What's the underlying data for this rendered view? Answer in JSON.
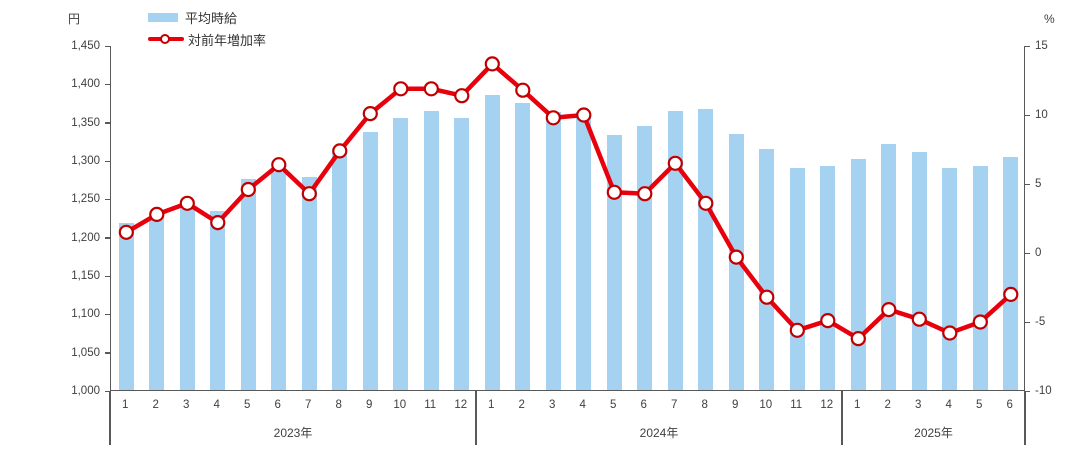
{
  "units": {
    "left": "円",
    "right": "%"
  },
  "legend": {
    "bar_label": "平均時給",
    "line_label": "対前年増加率"
  },
  "colors": {
    "bar": "#A6D2F2",
    "line": "#E8000D",
    "marker_fill": "#FFFFFF",
    "marker_edge": "#C00000",
    "axis": "#595959",
    "text": "#404040"
  },
  "chart_data": {
    "type": "bar+line combo",
    "title": "",
    "grid": false,
    "legend_position": "top-left",
    "left_axis": {
      "unit": "円",
      "min": 1000,
      "max": 1450,
      "step": 50
    },
    "right_axis": {
      "unit": "%",
      "min": -10,
      "max": 15,
      "step": 5
    },
    "groups": [
      {
        "year_label": "2023年",
        "count": 12
      },
      {
        "year_label": "2024年",
        "count": 12
      },
      {
        "year_label": "2025年",
        "count": 6
      }
    ],
    "categories": [
      "1",
      "2",
      "3",
      "4",
      "5",
      "6",
      "7",
      "8",
      "9",
      "10",
      "11",
      "12",
      "1",
      "2",
      "3",
      "4",
      "5",
      "6",
      "7",
      "8",
      "9",
      "10",
      "11",
      "12",
      "1",
      "2",
      "3",
      "4",
      "5",
      "6"
    ],
    "series": [
      {
        "name": "平均時給",
        "type": "bar",
        "axis": "left",
        "values": [
          1218,
          1230,
          1238,
          1233,
          1275,
          1285,
          1278,
          1315,
          1336,
          1355,
          1364,
          1355,
          1385,
          1375,
          1362,
          1362,
          1333,
          1344,
          1364,
          1366,
          1334,
          1314,
          1290,
          1292,
          1301,
          1321,
          1311,
          1290,
          1292,
          1304
        ]
      },
      {
        "name": "対前年増加率",
        "type": "line",
        "axis": "right",
        "values": [
          1.5,
          2.8,
          3.6,
          2.2,
          4.6,
          6.4,
          4.3,
          7.4,
          10.1,
          11.9,
          11.9,
          11.4,
          13.7,
          11.8,
          9.8,
          10.0,
          4.4,
          4.3,
          6.5,
          3.6,
          -0.3,
          -3.2,
          -5.6,
          -4.9,
          -6.2,
          -4.1,
          -4.8,
          -5.8,
          -5.0,
          -3.0
        ]
      }
    ]
  }
}
